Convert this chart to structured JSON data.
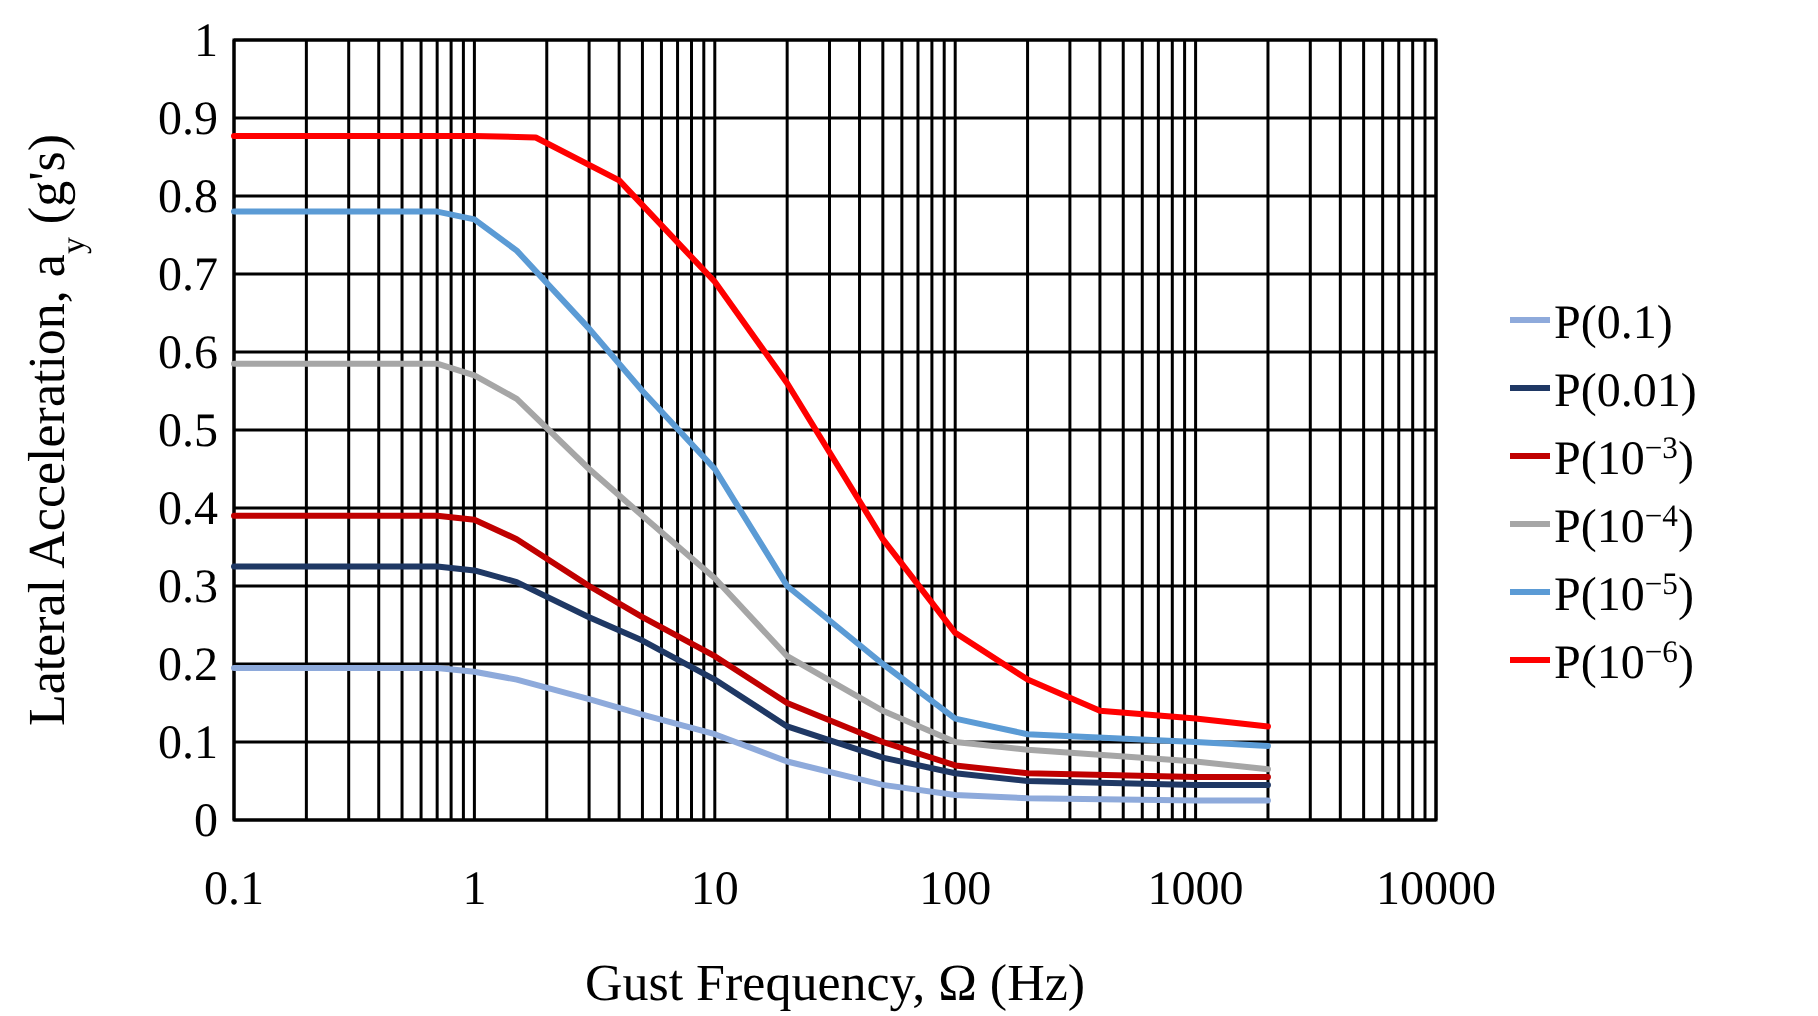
{
  "chart_data": {
    "type": "line",
    "xlabel": "Gust Frequency, Ω (Hz)",
    "ylabel": "Lateral Acceleration, a$_{y}$ (g's)",
    "x": [
      0.1,
      0.7,
      1,
      1.5,
      3,
      5,
      10,
      20,
      50,
      100,
      200,
      1000,
      2000
    ],
    "series": [
      {
        "name": "P(0.1)",
        "color": "#8eaadb",
        "values": [
          0.195,
          0.195,
          0.19,
          0.18,
          0.155,
          0.135,
          0.11,
          0.075,
          0.045,
          0.032,
          0.028,
          0.025,
          0.025
        ]
      },
      {
        "name": "P(0.01)",
        "color": "#1f3864",
        "values": [
          0.325,
          0.325,
          0.32,
          0.305,
          0.26,
          0.23,
          0.18,
          0.12,
          0.08,
          0.06,
          0.05,
          0.045,
          0.045
        ]
      },
      {
        "name": "P(10$^{−3}$)",
        "color": "#c00000",
        "values": [
          0.39,
          0.39,
          0.385,
          0.36,
          0.3,
          0.26,
          0.21,
          0.15,
          0.1,
          0.07,
          0.06,
          0.055,
          0.055
        ]
      },
      {
        "name": "P(10$^{−4}$)",
        "color": "#a6a6a6",
        "values": [
          0.585,
          0.585,
          0.57,
          0.54,
          0.45,
          0.39,
          0.31,
          0.21,
          0.14,
          0.1,
          0.09,
          0.075,
          0.065
        ]
      },
      {
        "name": "P(10$^{−5}$)",
        "color": "#5b9bd5",
        "values": [
          0.78,
          0.78,
          0.77,
          0.73,
          0.63,
          0.55,
          0.45,
          0.3,
          0.2,
          0.13,
          0.11,
          0.1,
          0.095
        ]
      },
      {
        "name": "P(10$^{−6}$)",
        "color": "#ff0000",
        "x": [
          0.1,
          1,
          1.8,
          4,
          10,
          20,
          50,
          100,
          200,
          400,
          1000,
          2000
        ],
        "values": [
          0.877,
          0.877,
          0.875,
          0.82,
          0.69,
          0.56,
          0.36,
          0.24,
          0.18,
          0.14,
          0.13,
          0.12
        ]
      }
    ],
    "xlim": [
      0.1,
      10000
    ],
    "xticks": [
      0.1,
      1,
      10,
      100,
      1000,
      10000
    ],
    "ylim": [
      0,
      1
    ],
    "yticks": [
      0,
      0.1,
      0.2,
      0.3,
      0.4,
      0.5,
      0.6,
      0.7,
      0.8,
      0.9,
      1
    ],
    "log": "x",
    "grid": true,
    "legend": "right",
    "marker": "none",
    "line_style": "solid"
  }
}
